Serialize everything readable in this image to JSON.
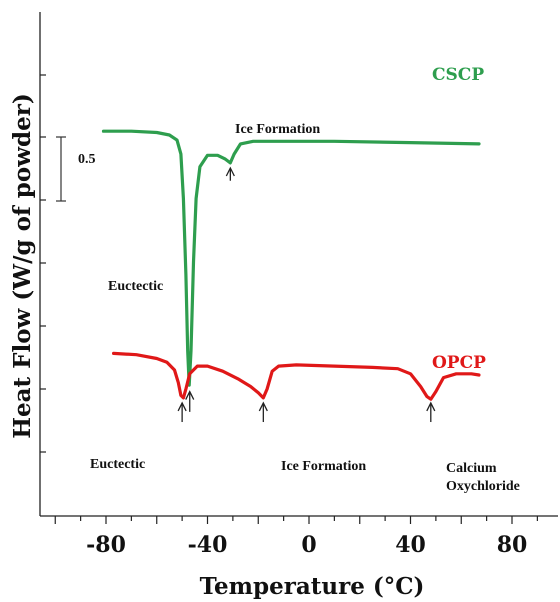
{
  "chart_data": {
    "type": "line",
    "xlabel": "Temperature (°C)",
    "ylabel": "Heat Flow (W/g of powder)",
    "xlim": [
      -100,
      100
    ],
    "x_ticks": [
      -80,
      -40,
      0,
      40,
      80
    ],
    "scale_bar": {
      "label": "0.5",
      "value": 0.5
    },
    "grid": false,
    "series": [
      {
        "name": "CSCP",
        "color": "#2e9e4e",
        "points": [
          [
            -81,
            3.03
          ],
          [
            -70,
            3.03
          ],
          [
            -60,
            3.02
          ],
          [
            -55,
            3.0
          ],
          [
            -52,
            2.96
          ],
          [
            -50.5,
            2.85
          ],
          [
            -49.5,
            2.5
          ],
          [
            -48.5,
            1.9
          ],
          [
            -47.8,
            1.3
          ],
          [
            -47.2,
            1.03
          ],
          [
            -46.5,
            1.3
          ],
          [
            -45.5,
            2.0
          ],
          [
            -44.5,
            2.5
          ],
          [
            -43,
            2.75
          ],
          [
            -40,
            2.84
          ],
          [
            -36,
            2.84
          ],
          [
            -33,
            2.81
          ],
          [
            -31,
            2.78
          ],
          [
            -29.5,
            2.85
          ],
          [
            -27,
            2.93
          ],
          [
            -22,
            2.95
          ],
          [
            -10,
            2.95
          ],
          [
            10,
            2.95
          ],
          [
            40,
            2.94
          ],
          [
            67,
            2.93
          ]
        ]
      },
      {
        "name": "OPCP",
        "color": "#e01818",
        "points": [
          [
            -77,
            1.28
          ],
          [
            -68,
            1.27
          ],
          [
            -60,
            1.24
          ],
          [
            -56,
            1.21
          ],
          [
            -53,
            1.15
          ],
          [
            -51.5,
            1.05
          ],
          [
            -50.5,
            0.95
          ],
          [
            -49.5,
            0.93
          ],
          [
            -48.5,
            1.0
          ],
          [
            -47,
            1.12
          ],
          [
            -44,
            1.18
          ],
          [
            -40,
            1.18
          ],
          [
            -34,
            1.14
          ],
          [
            -28,
            1.08
          ],
          [
            -23,
            1.02
          ],
          [
            -20,
            0.97
          ],
          [
            -18,
            0.93
          ],
          [
            -16.5,
            1.0
          ],
          [
            -14.5,
            1.14
          ],
          [
            -12,
            1.18
          ],
          [
            -5,
            1.19
          ],
          [
            10,
            1.18
          ],
          [
            25,
            1.17
          ],
          [
            35,
            1.16
          ],
          [
            40,
            1.12
          ],
          [
            44,
            1.02
          ],
          [
            46.5,
            0.94
          ],
          [
            48,
            0.92
          ],
          [
            50,
            0.98
          ],
          [
            53,
            1.09
          ],
          [
            58,
            1.12
          ],
          [
            64,
            1.12
          ],
          [
            67,
            1.11
          ]
        ]
      }
    ],
    "annotations": [
      {
        "text": "Ice Formation",
        "x": -31,
        "y": 2.62,
        "arrow_tip_y": 2.74,
        "arrow_base_y": 2.64
      },
      {
        "text": "Euctectic",
        "x": -47,
        "y": 0.88,
        "arrow_tip_y": 0.98,
        "arrow_base_y": 0.82
      },
      {
        "text": "Euctectic",
        "x": -50,
        "y": 0.72,
        "arrow_tip_y": 0.89,
        "arrow_base_y": 0.74
      },
      {
        "text": "Ice Formation",
        "x": -18,
        "y": 0.72,
        "arrow_tip_y": 0.89,
        "arrow_base_y": 0.74
      },
      {
        "text": "Calcium Oxychloride",
        "x": 48,
        "y": 0.72,
        "arrow_tip_y": 0.89,
        "arrow_base_y": 0.74
      }
    ]
  }
}
